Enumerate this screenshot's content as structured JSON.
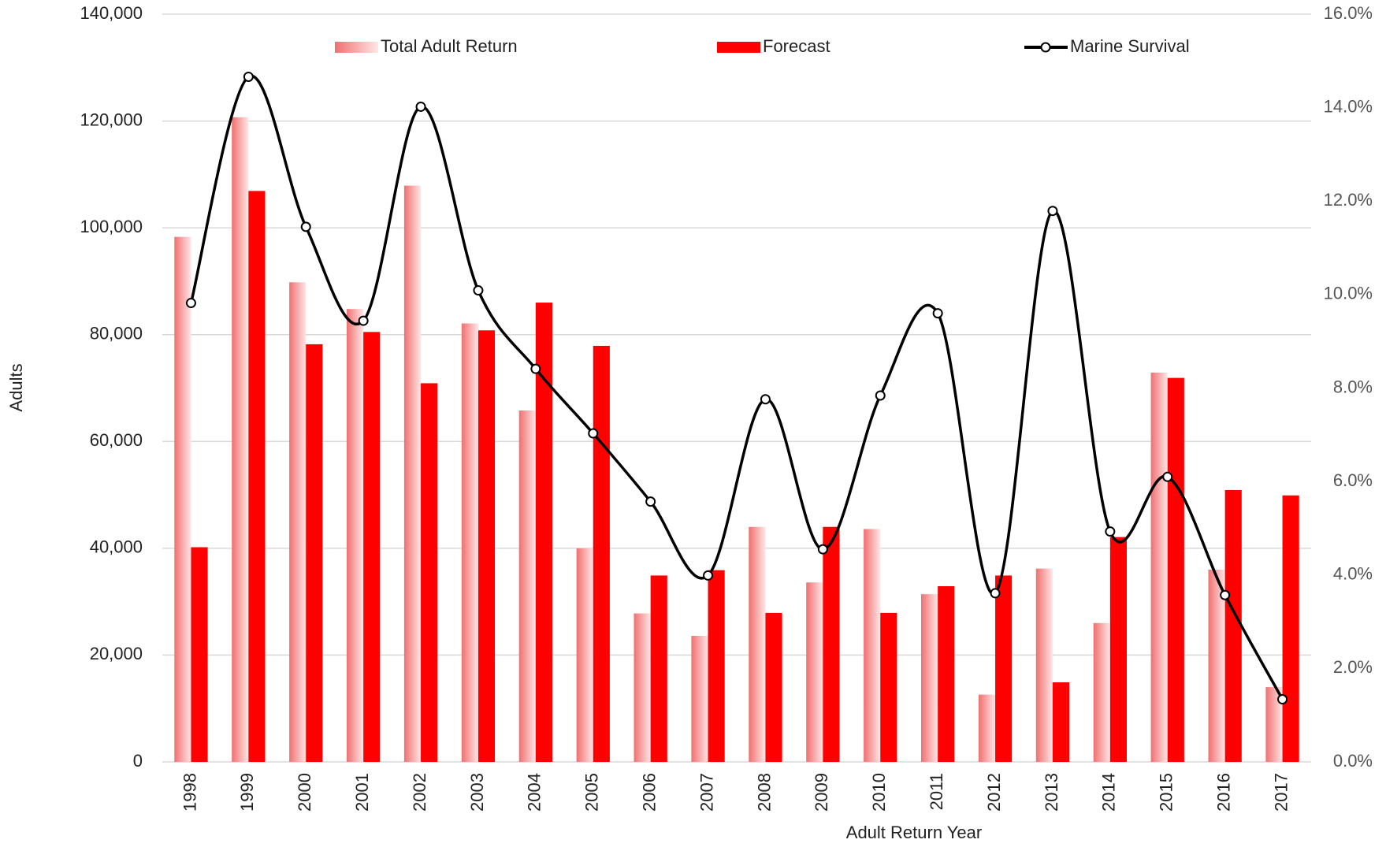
{
  "chart_data": {
    "type": "bar-line",
    "x_label": "Adult Return Year",
    "y_label": "Adults",
    "categories": [
      "1998",
      "1999",
      "2000",
      "2001",
      "2002",
      "2003",
      "2004",
      "2005",
      "2006",
      "2007",
      "2008",
      "2009",
      "2010",
      "2011",
      "2012",
      "2013",
      "2014",
      "2015",
      "2016",
      "2017"
    ],
    "series": [
      {
        "name": "Total Adult Return",
        "type": "bar",
        "color": "#f07070",
        "values": [
          98300,
          120700,
          89800,
          84800,
          107900,
          82100,
          65800,
          40000,
          27800,
          23600,
          44000,
          33600,
          43600,
          31400,
          12600,
          36200,
          26000,
          72900,
          36000,
          14000
        ]
      },
      {
        "name": "Forecast",
        "type": "bar",
        "color": "#ff0000",
        "values": [
          40200,
          106900,
          78200,
          80500,
          70900,
          80800,
          86000,
          77900,
          34900,
          35900,
          27900,
          44000,
          27900,
          32900,
          34900,
          14900,
          42100,
          71900,
          50900,
          49900
        ]
      },
      {
        "name": "Marine Survival",
        "type": "line",
        "axis": "y2",
        "color": "#000000",
        "values": [
          9.82,
          14.66,
          11.45,
          9.44,
          14.02,
          10.09,
          8.41,
          7.03,
          5.57,
          3.99,
          7.76,
          4.55,
          7.84,
          9.6,
          3.61,
          11.79,
          4.93,
          6.1,
          3.57,
          1.34
        ]
      }
    ],
    "ylim": [
      0,
      140000
    ],
    "yticks": [
      0,
      {
        "value": 20000,
        "label": "20,000"
      },
      {
        "value": 40000,
        "label": "40,000"
      },
      {
        "value": 60000,
        "label": "60,000"
      },
      {
        "value": 80000,
        "label": "80,000"
      },
      {
        "value": 100000,
        "label": "100,000"
      },
      {
        "value": 120000,
        "label": "120,000"
      },
      {
        "value": 140000,
        "label": "140,000"
      }
    ],
    "y2lim": [
      0,
      16
    ],
    "y2ticks": [
      {
        "value": 0,
        "label": "0.0%"
      },
      {
        "value": 2,
        "label": "2.0%"
      },
      {
        "value": 4,
        "label": "4.0%"
      },
      {
        "value": 6,
        "label": "6.0%"
      },
      {
        "value": 8,
        "label": "8.0%"
      },
      {
        "value": 10,
        "label": "10.0%"
      },
      {
        "value": 12,
        "label": "12.0%"
      },
      {
        "value": 14,
        "label": "14.0%"
      },
      {
        "value": 16,
        "label": "16.0%"
      }
    ],
    "grid": true,
    "legend": "top"
  }
}
